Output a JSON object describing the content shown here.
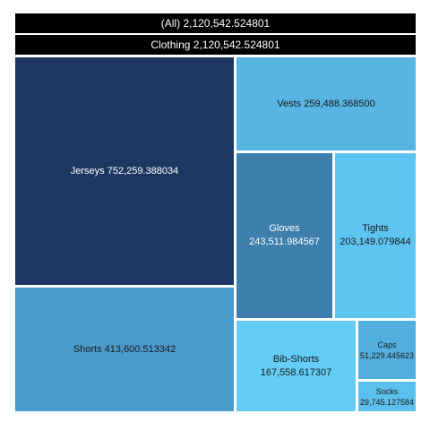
{
  "chart_data": {
    "type": "treemap",
    "root": {
      "label": "(All)",
      "value_text": "2,120,542.524801",
      "value": 2120542.524801
    },
    "category": {
      "label": "Clothing",
      "value_text": "2,120,542.524801",
      "value": 2120542.524801
    },
    "items": [
      {
        "label": "Jerseys",
        "value_text": "752,259.388034",
        "value": 752259.388034,
        "color": "#1c3861",
        "text_color": "#ffffff"
      },
      {
        "label": "Shorts",
        "value_text": "413,600.513342",
        "value": 413600.513342,
        "color": "#4a9acc",
        "text_color": "#1a1a1a"
      },
      {
        "label": "Vests",
        "value_text": "259,488.368500",
        "value": 259488.3685,
        "color": "#58b4e3",
        "text_color": "#1a1a1a"
      },
      {
        "label": "Gloves",
        "value_text": "243,511.984567",
        "value": 243511.984567,
        "color": "#3e7fad",
        "text_color": "#ffffff"
      },
      {
        "label": "Tights",
        "value_text": "203,149.079844",
        "value": 203149.079844,
        "color": "#5ec4f2",
        "text_color": "#1a1a1a"
      },
      {
        "label": "Bib-Shorts",
        "value_text": "167,558.617307",
        "value": 167558.617307,
        "color": "#63cdf7",
        "text_color": "#1a1a1a"
      },
      {
        "label": "Caps",
        "value_text": "51,229.445623",
        "value": 51229.445623,
        "color": "#52aede",
        "text_color": "#1a1a1a"
      },
      {
        "label": "Socks",
        "value_text": "29,745.127584",
        "value": 29745.127584,
        "color": "#5cc0ef",
        "text_color": "#1a1a1a"
      }
    ]
  }
}
